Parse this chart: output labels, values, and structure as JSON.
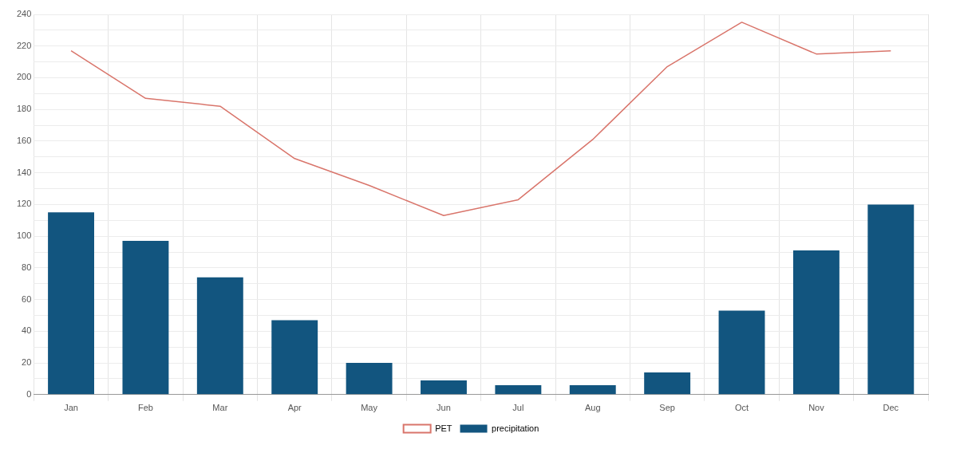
{
  "chart_data": {
    "type": "bar",
    "categories": [
      "Jan",
      "Feb",
      "Mar",
      "Apr",
      "May",
      "Jun",
      "Jul",
      "Aug",
      "Sep",
      "Oct",
      "Nov",
      "Dec"
    ],
    "series": [
      {
        "name": "PET",
        "type": "line",
        "color": "#d9756b",
        "values": [
          217,
          187,
          182,
          149,
          132,
          113,
          123,
          161,
          207,
          235,
          215,
          217
        ]
      },
      {
        "name": "precipitation",
        "color": "#12557f",
        "values": [
          115,
          97,
          74,
          47,
          20,
          9,
          6,
          6,
          14,
          53,
          91,
          120
        ]
      }
    ],
    "ylim": [
      0,
      240
    ],
    "yticks": [
      0,
      {
        "value": 10,
        "label": null
      },
      20,
      {
        "value": 30,
        "label": null
      },
      40,
      {
        "value": 50,
        "label": null
      },
      60,
      {
        "value": 70,
        "label": null
      },
      80,
      {
        "value": 90,
        "label": null
      },
      100,
      {
        "value": 110,
        "label": null
      },
      120,
      {
        "value": 130,
        "label": null
      },
      140,
      {
        "value": 150,
        "label": null
      },
      160,
      {
        "value": 170,
        "label": null
      },
      180,
      {
        "value": 190,
        "label": null
      },
      200,
      {
        "value": 210,
        "label": null
      },
      220,
      {
        "value": 230,
        "label": null
      },
      240
    ],
    "grid": true,
    "legend": "bottom",
    "marker": "none"
  }
}
